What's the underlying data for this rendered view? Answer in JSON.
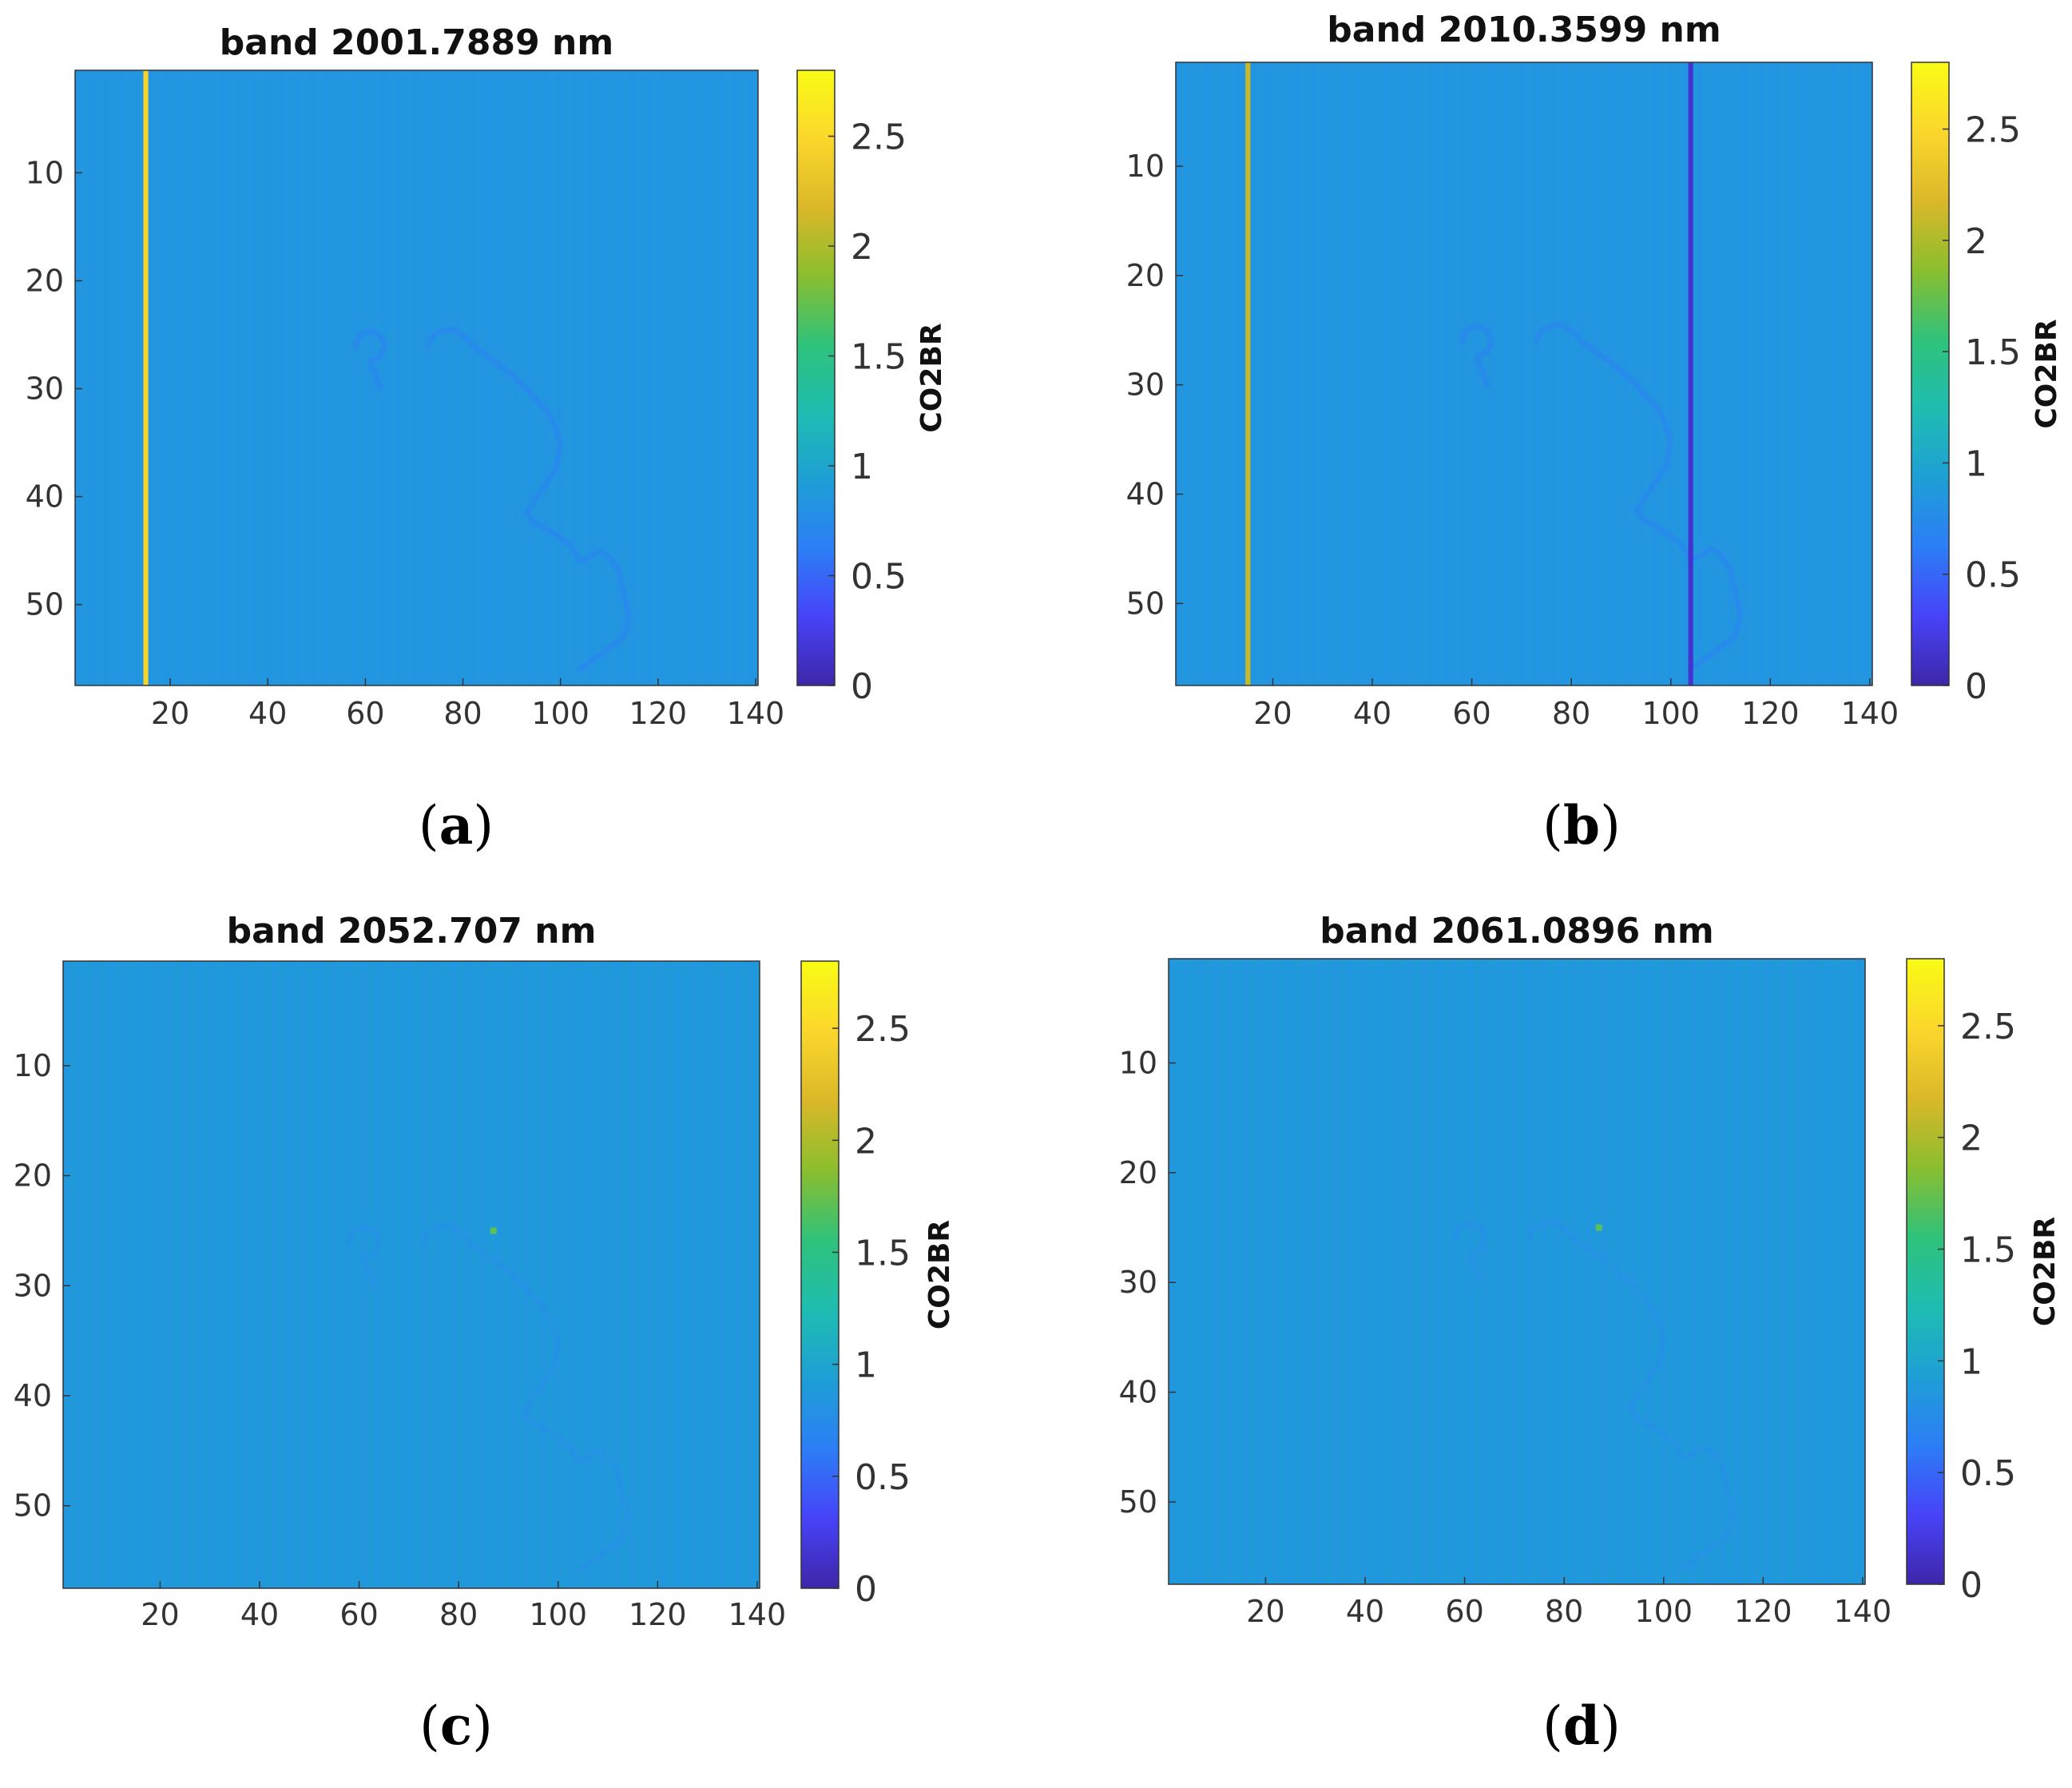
{
  "figure": {
    "background": "#ffffff",
    "colormap": [
      "#3e26a8",
      "#4743f8",
      "#2c7ef6",
      "#1e9fd5",
      "#1fbdb1",
      "#2fc27a",
      "#8bbe2e",
      "#dbb829",
      "#fbd72c",
      "#f9fb15"
    ],
    "heatmap_base_color": "#2e8ded"
  },
  "chart_data": [
    {
      "type": "heatmap",
      "panel": "a",
      "caption": "(a)",
      "caption_letter": "a",
      "title": "band 2001.7889 nm",
      "x_range": [
        1,
        140
      ],
      "y_range": [
        1,
        57
      ],
      "x_ticks": [
        20,
        40,
        60,
        80,
        100,
        120,
        140
      ],
      "x_tick_labels": [
        "20",
        "40",
        "60",
        "80",
        "100",
        "120",
        "140"
      ],
      "y_ticks": [
        10,
        20,
        30,
        40,
        50
      ],
      "y_tick_labels": [
        "10",
        "20",
        "30",
        "40",
        "50"
      ],
      "colorbar_label": "CO2BR",
      "clim": [
        0,
        2.8
      ],
      "colorbar_ticks": [
        0,
        0.5,
        1,
        1.5,
        2,
        2.5
      ],
      "colorbar_tick_labels": [
        "0",
        "0.5",
        "1",
        "1.5",
        "2",
        "2.5"
      ],
      "background_value": 0.85,
      "column_anomalies": [
        {
          "column": 15,
          "value": 2.45
        }
      ],
      "contour_value": 0.72,
      "hotspot": null
    },
    {
      "type": "heatmap",
      "panel": "b",
      "caption": "(b)",
      "caption_letter": "b",
      "title": "band 2010.3599 nm",
      "x_range": [
        1,
        140
      ],
      "y_range": [
        1,
        57
      ],
      "x_ticks": [
        20,
        40,
        60,
        80,
        100,
        120,
        140
      ],
      "x_tick_labels": [
        "20",
        "40",
        "60",
        "80",
        "100",
        "120",
        "140"
      ],
      "y_ticks": [
        10,
        20,
        30,
        40,
        50
      ],
      "y_tick_labels": [
        "10",
        "20",
        "30",
        "40",
        "50"
      ],
      "colorbar_label": "CO2BR",
      "clim": [
        0,
        2.8
      ],
      "colorbar_ticks": [
        0,
        0.5,
        1,
        1.5,
        2,
        2.5
      ],
      "colorbar_tick_labels": [
        "0",
        "0.5",
        "1",
        "1.5",
        "2",
        "2.5"
      ],
      "background_value": 0.85,
      "column_anomalies": [
        {
          "column": 15,
          "value": 2.1
        },
        {
          "column": 104,
          "value": 0.15
        }
      ],
      "contour_value": 0.72,
      "hotspot": null
    },
    {
      "type": "heatmap",
      "panel": "c",
      "caption": "(c)",
      "caption_letter": "c",
      "title": "band 2052.707 nm",
      "x_range": [
        1,
        140
      ],
      "y_range": [
        1,
        57
      ],
      "x_ticks": [
        20,
        40,
        60,
        80,
        100,
        120,
        140
      ],
      "x_tick_labels": [
        "20",
        "40",
        "60",
        "80",
        "100",
        "120",
        "140"
      ],
      "y_ticks": [
        10,
        20,
        30,
        40,
        50
      ],
      "y_tick_labels": [
        "10",
        "20",
        "30",
        "40",
        "50"
      ],
      "colorbar_label": "CO2BR",
      "clim": [
        0,
        2.8
      ],
      "colorbar_ticks": [
        0,
        0.5,
        1,
        1.5,
        2,
        2.5
      ],
      "colorbar_tick_labels": [
        "0",
        "0.5",
        "1",
        "1.5",
        "2",
        "2.5"
      ],
      "background_value": 0.88,
      "column_anomalies": [],
      "contour_value": 0.8,
      "hotspot": {
        "x": 87,
        "y": 25,
        "value": 1.7
      }
    },
    {
      "type": "heatmap",
      "panel": "d",
      "caption": "(d)",
      "caption_letter": "d",
      "title": "band 2061.0896 nm",
      "x_range": [
        1,
        140
      ],
      "y_range": [
        1,
        57
      ],
      "x_ticks": [
        20,
        40,
        60,
        80,
        100,
        120,
        140
      ],
      "x_tick_labels": [
        "20",
        "40",
        "60",
        "80",
        "100",
        "120",
        "140"
      ],
      "y_ticks": [
        10,
        20,
        30,
        40,
        50
      ],
      "y_tick_labels": [
        "10",
        "20",
        "30",
        "40",
        "50"
      ],
      "colorbar_label": "CO2BR",
      "clim": [
        0,
        2.8
      ],
      "colorbar_ticks": [
        0,
        0.5,
        1,
        1.5,
        2,
        2.5
      ],
      "colorbar_tick_labels": [
        "0",
        "0.5",
        "1",
        "1.5",
        "2",
        "2.5"
      ],
      "background_value": 0.88,
      "column_anomalies": [],
      "contour_value": 0.8,
      "hotspot": {
        "x": 87,
        "y": 25,
        "value": 1.7
      }
    }
  ]
}
